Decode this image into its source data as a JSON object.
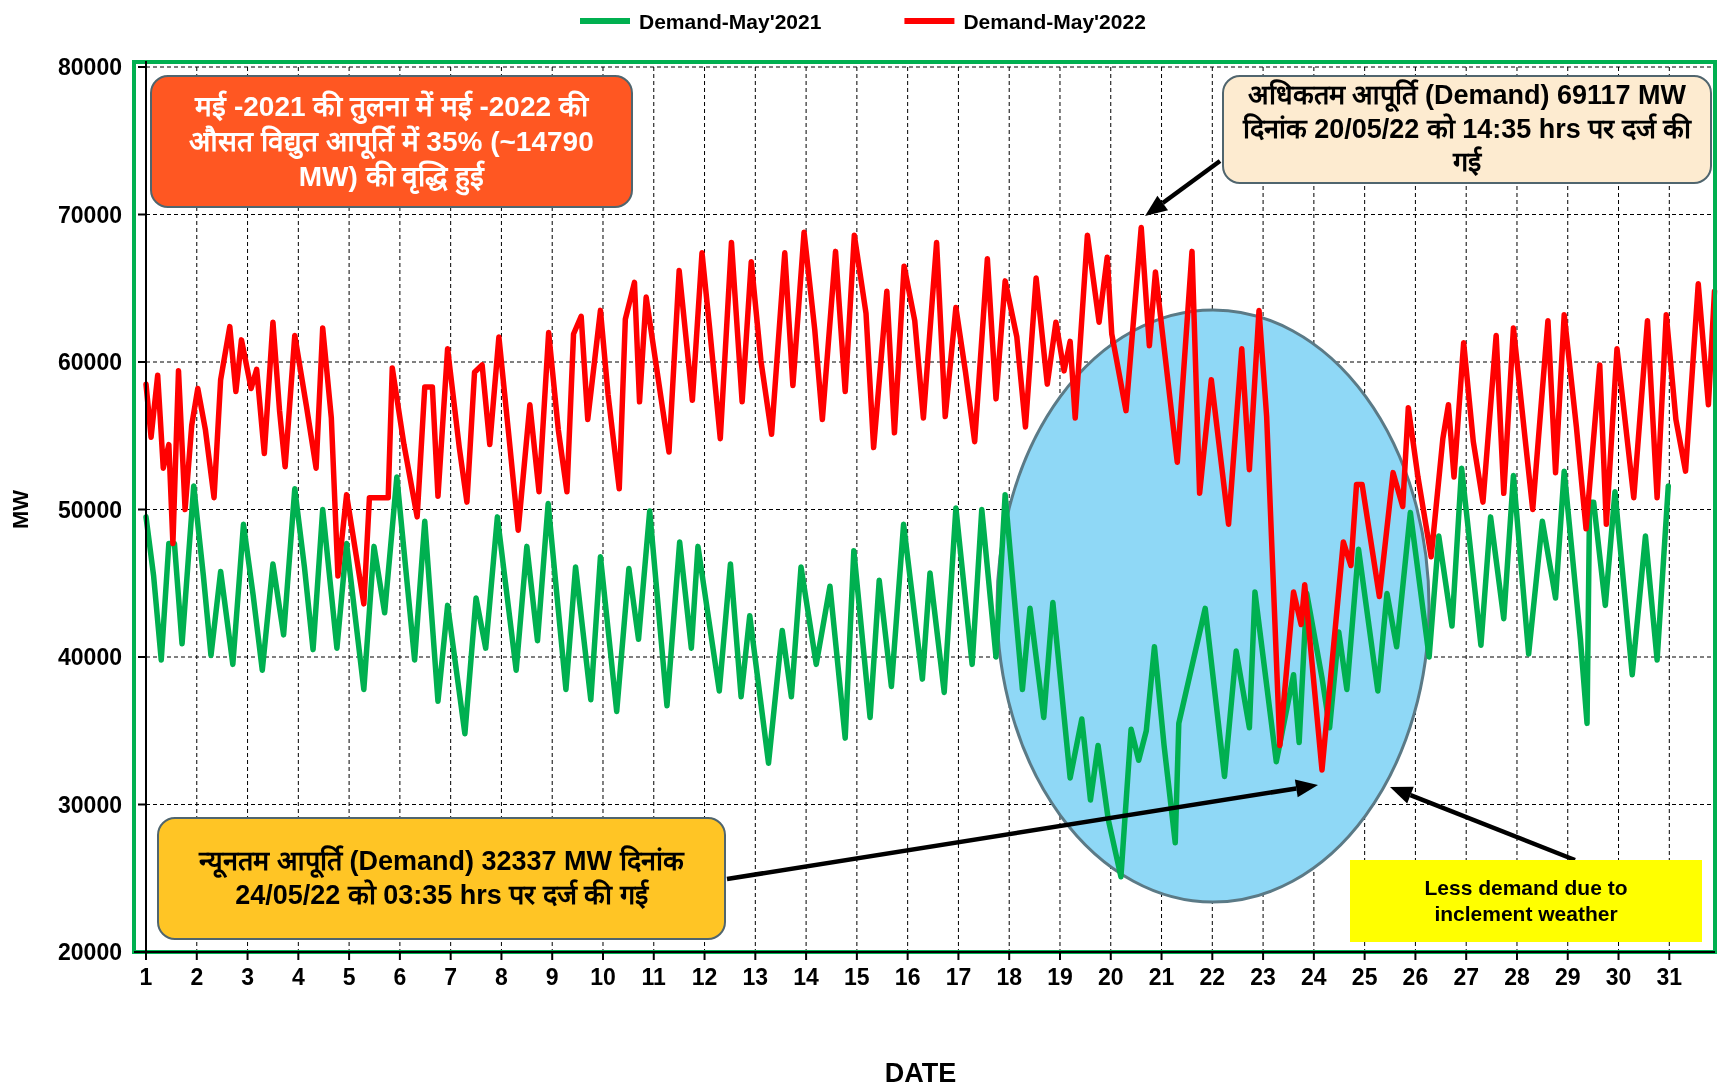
{
  "chart_data": {
    "type": "line",
    "xlabel": "DATE",
    "ylabel": "MW",
    "xlim": [
      1,
      31.9
    ],
    "ylim": [
      20000,
      80000
    ],
    "xticks": [
      1,
      2,
      3,
      4,
      5,
      6,
      7,
      8,
      9,
      10,
      11,
      12,
      13,
      14,
      15,
      16,
      17,
      18,
      19,
      20,
      21,
      22,
      23,
      24,
      25,
      26,
      27,
      28,
      29,
      30,
      31
    ],
    "yticks": [
      20000,
      30000,
      40000,
      50000,
      60000,
      70000,
      80000
    ],
    "grid": true,
    "legend": "top",
    "series": [
      {
        "name": "Demand-May'2021",
        "color": "#00b050",
        "x": [
          1.0,
          1.15,
          1.3,
          1.45,
          1.56,
          1.71,
          1.94,
          2.13,
          2.28,
          2.47,
          2.71,
          2.92,
          3.11,
          3.29,
          3.5,
          3.71,
          3.93,
          4.12,
          4.29,
          4.48,
          4.76,
          4.95,
          5.29,
          5.49,
          5.7,
          5.94,
          6.29,
          6.49,
          6.75,
          6.94,
          7.28,
          7.5,
          7.69,
          7.92,
          8.29,
          8.5,
          8.71,
          8.92,
          9.27,
          9.46,
          9.76,
          9.95,
          10.27,
          10.51,
          10.7,
          10.92,
          11.26,
          11.51,
          11.74,
          11.87,
          12.29,
          12.51,
          12.72,
          12.89,
          13.26,
          13.53,
          13.71,
          13.9,
          14.2,
          14.47,
          14.77,
          14.94,
          15.26,
          15.44,
          15.68,
          15.92,
          16.29,
          16.44,
          16.72,
          16.95,
          17.27,
          17.46,
          17.74,
          17.92,
          18.26,
          18.41,
          18.68,
          18.86,
          19.2,
          19.43,
          19.6,
          19.75,
          19.95,
          20.2,
          20.4,
          20.55,
          20.7,
          20.86,
          21.05,
          21.27,
          21.34,
          21.86,
          22.24,
          22.47,
          22.73,
          22.84,
          23.26,
          23.6,
          23.71,
          23.86,
          24.16,
          24.31,
          24.49,
          24.65,
          24.88,
          25.26,
          25.44,
          25.63,
          25.9,
          26.27,
          26.46,
          26.72,
          26.91,
          27.29,
          27.48,
          27.74,
          27.93,
          28.23,
          28.5,
          28.76,
          28.93,
          29.25,
          29.38,
          29.43,
          29.51,
          29.74,
          29.93,
          30.27,
          30.53,
          30.76,
          30.98
        ],
        "values": [
          49500,
          45500,
          39800,
          47700,
          47700,
          40900,
          51600,
          45500,
          40100,
          45800,
          39500,
          49000,
          44200,
          39100,
          46300,
          41500,
          51400,
          46100,
          40500,
          50000,
          40600,
          47700,
          37800,
          47500,
          43000,
          52200,
          39800,
          49200,
          37000,
          43500,
          34800,
          44000,
          40600,
          49500,
          39100,
          47500,
          41100,
          50400,
          37800,
          46100,
          37100,
          46800,
          36300,
          46000,
          41200,
          49900,
          36700,
          47800,
          40600,
          47500,
          37700,
          46300,
          37300,
          42800,
          32800,
          41800,
          37300,
          46100,
          39500,
          44800,
          34500,
          47200,
          35900,
          45200,
          38000,
          49000,
          38500,
          45700,
          37600,
          50100,
          39500,
          50000,
          40000,
          51000,
          37800,
          43300,
          35900,
          43700,
          31800,
          35800,
          30300,
          34000,
          29000,
          25100,
          35100,
          33000,
          35000,
          40700,
          34000,
          27400,
          35500,
          43300,
          31900,
          40400,
          35200,
          44400,
          32900,
          38800,
          34200,
          44300,
          38600,
          35200,
          41700,
          37800,
          47300,
          37700,
          44300,
          40700,
          49800,
          40000,
          48200,
          42100,
          52800,
          40800,
          49500,
          42600,
          52300,
          40200,
          49200,
          44000,
          52600,
          41200,
          35500,
          50500,
          50500,
          43500,
          51200,
          38800,
          48200,
          39800,
          51600
        ]
      },
      {
        "name": "Demand-May'2022",
        "color": "#ff0000",
        "x": [
          1.0,
          1.1,
          1.23,
          1.34,
          1.45,
          1.53,
          1.64,
          1.77,
          1.9,
          2.02,
          2.17,
          2.34,
          2.47,
          2.65,
          2.77,
          2.88,
          3.07,
          3.18,
          3.33,
          3.5,
          3.63,
          3.74,
          3.93,
          4.16,
          4.35,
          4.48,
          4.65,
          4.78,
          4.95,
          5.29,
          5.4,
          5.77,
          5.85,
          6.08,
          6.34,
          6.49,
          6.64,
          6.75,
          6.94,
          7.17,
          7.32,
          7.47,
          7.62,
          7.77,
          7.95,
          8.14,
          8.33,
          8.56,
          8.74,
          8.93,
          9.12,
          9.29,
          9.42,
          9.57,
          9.7,
          9.95,
          10.1,
          10.32,
          10.44,
          10.62,
          10.72,
          10.85,
          11.3,
          11.5,
          11.76,
          11.95,
          12.1,
          12.31,
          12.53,
          12.74,
          12.92,
          13.11,
          13.32,
          13.58,
          13.74,
          13.96,
          14.17,
          14.32,
          14.58,
          14.77,
          14.95,
          15.18,
          15.33,
          15.59,
          15.74,
          15.93,
          16.14,
          16.31,
          16.57,
          16.74,
          16.95,
          17.14,
          17.32,
          17.57,
          17.74,
          17.92,
          18.15,
          18.32,
          18.53,
          18.75,
          18.92,
          19.08,
          19.2,
          19.3,
          19.54,
          19.77,
          19.93,
          20.02,
          20.3,
          20.6,
          20.76,
          20.88,
          21.31,
          21.6,
          21.75,
          21.98,
          22.32,
          22.58,
          22.73,
          22.92,
          23.07,
          23.33,
          23.6,
          23.75,
          23.82,
          24.16,
          24.58,
          24.73,
          24.84,
          24.95,
          25.29,
          25.56,
          25.75,
          25.86,
          26.05,
          26.31,
          26.54,
          26.65,
          26.76,
          26.95,
          27.14,
          27.33,
          27.59,
          27.74,
          27.93,
          28.16,
          28.31,
          28.61,
          28.76,
          28.93,
          29.17,
          29.36,
          29.63,
          29.76,
          29.97,
          30.3,
          30.57,
          30.76,
          30.94,
          31.13,
          31.32,
          31.57,
          31.77,
          31.89
        ],
        "values": [
          58500,
          54900,
          59100,
          52800,
          54400,
          47700,
          59400,
          50000,
          55700,
          58200,
          55400,
          50800,
          58800,
          62400,
          58000,
          61500,
          58200,
          59500,
          53800,
          62700,
          56700,
          52900,
          61800,
          57000,
          52800,
          62300,
          56200,
          45500,
          51000,
          43600,
          50800,
          50800,
          59600,
          54400,
          49500,
          58300,
          58300,
          50900,
          60900,
          54200,
          50500,
          59300,
          59800,
          54400,
          61700,
          55200,
          48600,
          57100,
          51200,
          62000,
          55400,
          51200,
          61900,
          63100,
          56100,
          63500,
          57800,
          51400,
          62900,
          65400,
          57300,
          64400,
          53900,
          66200,
          57400,
          67400,
          62300,
          54800,
          68100,
          57300,
          66800,
          60100,
          55100,
          67400,
          58400,
          68800,
          62200,
          56100,
          67500,
          58000,
          68600,
          63300,
          54200,
          64800,
          55200,
          66500,
          62800,
          56200,
          68100,
          56300,
          63700,
          59300,
          54600,
          67000,
          57500,
          65500,
          61700,
          55600,
          65700,
          58500,
          62700,
          59400,
          61400,
          56200,
          68600,
          62700,
          67100,
          61900,
          56700,
          69117,
          61100,
          66100,
          53200,
          67500,
          51100,
          58800,
          49000,
          60900,
          52700,
          63500,
          56300,
          34000,
          44400,
          42200,
          44900,
          32337,
          47800,
          46200,
          51700,
          51700,
          44100,
          52500,
          50200,
          56900,
          52200,
          46800,
          54800,
          57100,
          52200,
          61300,
          54600,
          50500,
          61800,
          51100,
          62300,
          54800,
          50000,
          62800,
          52500,
          63200,
          55600,
          48700,
          59800,
          49000,
          60900,
          50800,
          62800,
          50800,
          63200,
          56100,
          52600,
          65300,
          57100,
          64800
        ]
      }
    ],
    "annotations": [
      "मई -2021 की तुलना में मई -2022 की औसत विद्युत आपूर्ति में 35% (~14790 MW) की वृद्धि हुई",
      "अधिकतम आपूर्ति (Demand) 69117 MW दिनांक 20/05/22 को 14:35 hrs पर दर्ज की गई",
      "न्यूनतम आपूर्ति (Demand) 32337 MW दिनांक 24/05/22 को 03:35 hrs पर दर्ज की गई",
      "Less demand due to inclement weather"
    ]
  }
}
